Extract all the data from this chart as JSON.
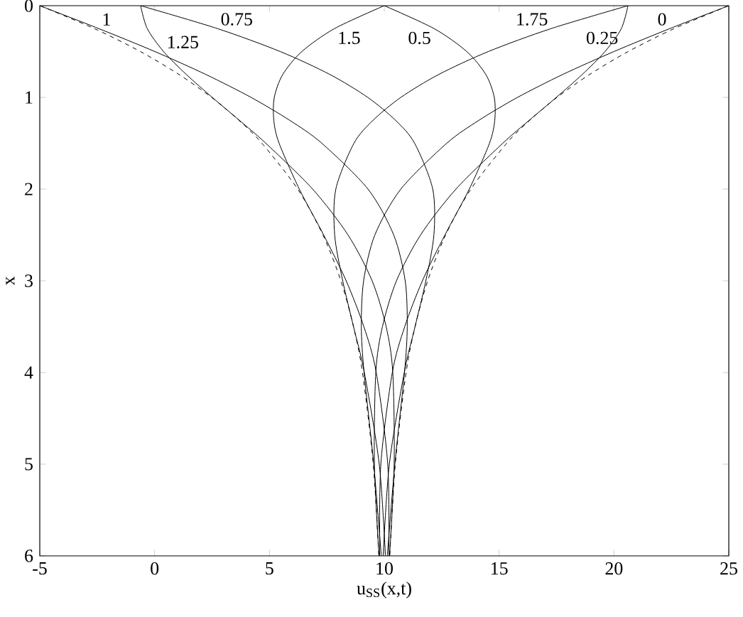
{
  "chart_data": {
    "type": "line",
    "xlabel": "u$_{SS}$(x,t)",
    "ylabel": "x",
    "xlim": [
      -5,
      25
    ],
    "ylim": [
      6,
      0
    ],
    "xticks": [
      -5,
      0,
      5,
      10,
      15,
      20,
      25
    ],
    "yticks": [
      0,
      1,
      2,
      3,
      4,
      5,
      6
    ],
    "series": [
      {
        "name": "0",
        "color": "#000000",
        "x": [
          25,
          22.43,
          20.0,
          17.77,
          15.8,
          14.12,
          12.72,
          10.72,
          9.59,
          9.1,
          9.0,
          9.12,
          9.54,
          9.87
        ],
        "values": [
          0,
          0.25,
          0.5,
          0.75,
          1,
          1.25,
          1.5,
          2,
          2.5,
          3,
          3.5,
          4,
          5,
          6
        ]
      },
      {
        "name": "0.25",
        "color": "#000000",
        "x": [
          20.61,
          20.32,
          19.61,
          18.62,
          17.49,
          16.31,
          15.16,
          13.12,
          11.58,
          10.53,
          9.92,
          9.63,
          9.57,
          9.77
        ],
        "values": [
          0,
          0.25,
          0.5,
          0.75,
          1,
          1.25,
          1.5,
          2,
          2.5,
          3,
          3.5,
          4,
          5,
          6
        ]
      },
      {
        "name": "0.5",
        "color": "#000000",
        "x": [
          10,
          12.17,
          13.59,
          14.42,
          14.79,
          14.81,
          14.58,
          13.7,
          12.64,
          11.66,
          10.89,
          10.35,
          9.85,
          9.8
        ],
        "values": [
          0,
          0.25,
          0.5,
          0.75,
          1,
          1.25,
          1.5,
          2,
          2.5,
          3,
          3.5,
          4,
          5,
          6
        ]
      },
      {
        "name": "0.75",
        "color": "#000000",
        "x": [
          -0.61,
          2.74,
          5.47,
          7.63,
          9.28,
          10.49,
          11.32,
          12.11,
          12.16,
          11.81,
          11.34,
          10.87,
          10.22,
          9.95
        ],
        "values": [
          0,
          0.25,
          0.5,
          0.75,
          1,
          1.25,
          1.5,
          2,
          2.5,
          3,
          3.5,
          4,
          5,
          6
        ]
      },
      {
        "name": "1",
        "color": "#000000",
        "x": [
          -5,
          -2.43,
          0.01,
          2.23,
          4.2,
          5.88,
          7.28,
          9.29,
          10.41,
          10.91,
          11.0,
          10.88,
          10.46,
          10.13
        ],
        "values": [
          0,
          0.25,
          0.5,
          0.75,
          1,
          1.25,
          1.5,
          2,
          2.5,
          3,
          3.5,
          4,
          5,
          6
        ]
      },
      {
        "name": "1.25",
        "color": "#000000",
        "x": [
          -0.61,
          -0.32,
          0.39,
          1.38,
          2.51,
          3.69,
          4.84,
          6.88,
          8.42,
          9.47,
          10.08,
          10.37,
          10.43,
          10.23
        ],
        "values": [
          0,
          0.25,
          0.5,
          0.75,
          1,
          1.25,
          1.5,
          2,
          2.5,
          3,
          3.5,
          4,
          5,
          6
        ]
      },
      {
        "name": "1.5",
        "color": "#000000",
        "x": [
          10,
          7.83,
          6.41,
          5.58,
          5.21,
          5.19,
          5.42,
          6.3,
          7.36,
          8.34,
          9.11,
          9.65,
          10.15,
          10.2
        ],
        "values": [
          0,
          0.25,
          0.5,
          0.75,
          1,
          1.25,
          1.5,
          2,
          2.5,
          3,
          3.5,
          4,
          5,
          6
        ]
      },
      {
        "name": "1.75",
        "color": "#000000",
        "x": [
          20.61,
          17.26,
          14.53,
          12.37,
          10.72,
          9.51,
          8.68,
          7.89,
          7.84,
          8.19,
          8.66,
          9.13,
          9.78,
          10.05
        ],
        "values": [
          0,
          0.25,
          0.5,
          0.75,
          1,
          1.25,
          1.5,
          2,
          2.5,
          3,
          3.5,
          4,
          5,
          6
        ]
      },
      {
        "color": "#000000",
        "line_style": "dashed",
        "x": [
          -5,
          -2.62,
          -0.62,
          1.06,
          2.48,
          3.67,
          4.67,
          6.23,
          7.33,
          8.11,
          8.66,
          9.05,
          9.52,
          9.76
        ],
        "values": [
          0,
          0.25,
          0.5,
          0.75,
          1,
          1.25,
          1.5,
          2,
          2.5,
          3,
          3.5,
          4,
          5,
          6
        ]
      },
      {
        "color": "#000000",
        "line_style": "dashed",
        "x": [
          25,
          22.62,
          20.62,
          18.94,
          17.52,
          16.33,
          15.33,
          13.77,
          12.67,
          11.89,
          11.34,
          10.95,
          10.48,
          10.24
        ],
        "values": [
          0,
          0.25,
          0.5,
          0.75,
          1,
          1.25,
          1.5,
          2,
          2.5,
          3,
          3.5,
          4,
          5,
          6
        ]
      }
    ]
  }
}
